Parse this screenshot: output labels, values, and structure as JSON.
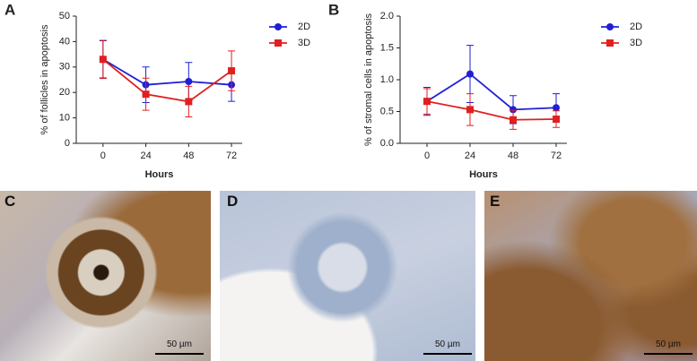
{
  "chart_data": [
    {
      "type": "line",
      "panel_label": "A",
      "y_label": "% of follicles in apoptosis",
      "x_label": "Hours",
      "x": [
        0,
        24,
        48,
        72
      ],
      "xlim": [
        -15,
        78
      ],
      "xticks": [
        0,
        24,
        48,
        72
      ],
      "ylim": [
        0,
        50
      ],
      "yticks": [
        0,
        10,
        20,
        30,
        40,
        50
      ],
      "legend": "top-right",
      "series": [
        {
          "name": "2D",
          "color": "#1f1fd6",
          "marker": "circle",
          "values": [
            33,
            23,
            24.3,
            23
          ],
          "errors": [
            7.3,
            7,
            7.5,
            6.5
          ]
        },
        {
          "name": "3D",
          "color": "#e02020",
          "marker": "square",
          "values": [
            33,
            19.3,
            16.4,
            28.5
          ],
          "errors": [
            7.5,
            6.3,
            6,
            7.8
          ]
        }
      ]
    },
    {
      "type": "line",
      "panel_label": "B",
      "y_label": "% of stromal cells in apoptosis",
      "x_label": "Hours",
      "x": [
        0,
        24,
        48,
        72
      ],
      "xlim": [
        -15,
        78
      ],
      "xticks": [
        0,
        24,
        48,
        72
      ],
      "ylim": [
        0,
        2
      ],
      "yticks": [
        {
          "value": 0,
          "label": "0.0"
        },
        0.5,
        {
          "value": 1,
          "label": "1.0"
        },
        1.5,
        {
          "value": 2,
          "label": "2.0"
        }
      ],
      "legend": "top-right",
      "series": [
        {
          "name": "2D",
          "color": "#1f1fd6",
          "marker": "circle",
          "values": [
            0.66,
            1.09,
            0.53,
            0.56
          ],
          "errors": [
            0.22,
            0.45,
            0.22,
            0.22
          ]
        },
        {
          "name": "3D",
          "color": "#e02020",
          "marker": "square",
          "values": [
            0.66,
            0.53,
            0.37,
            0.38
          ],
          "errors": [
            0.2,
            0.25,
            0.15,
            0.13
          ]
        }
      ]
    }
  ],
  "panels": [
    {
      "label": "C",
      "scale_bar": "50 µm"
    },
    {
      "label": "D",
      "scale_bar": "50 µm"
    },
    {
      "label": "E",
      "scale_bar": "50 µm"
    }
  ]
}
